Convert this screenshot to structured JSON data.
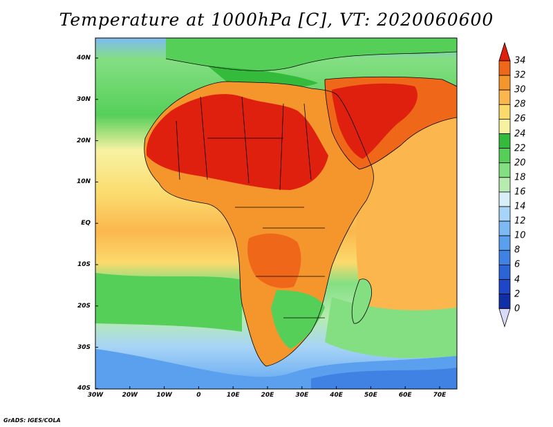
{
  "title": "Temperature at 1000hPa [C], VT: 2020060600",
  "credit": "GrADS: IGES/COLA",
  "map": {
    "lon_labels": [
      "30W",
      "20W",
      "10W",
      "0",
      "10E",
      "20E",
      "30E",
      "40E",
      "50E",
      "60E",
      "70E"
    ],
    "lat_labels": [
      "40N",
      "30N",
      "20N",
      "10N",
      "EQ",
      "10S",
      "20S",
      "30S",
      "40S"
    ],
    "lon_range": [
      -30,
      75
    ],
    "lat_range": [
      -40,
      44
    ],
    "land_outline": "coastline-and-country-borders"
  },
  "colorbar": {
    "ticks": [
      "34",
      "32",
      "30",
      "28",
      "26",
      "24",
      "22",
      "20",
      "18",
      "16",
      "14",
      "12",
      "10",
      "8",
      "6",
      "4",
      "2",
      "0"
    ],
    "colors": [
      "#000080",
      "#0f2fa6",
      "#1e46c8",
      "#2c64d8",
      "#3f82e4",
      "#5ba0ee",
      "#7db9f3",
      "#a7d4f7",
      "#d9eff7",
      "#b7ecb0",
      "#84df83",
      "#56cf59",
      "#35bb3c",
      "#f7f2a2",
      "#fbda6c",
      "#fbb74e",
      "#f5962d",
      "#ef6819",
      "#e0200f"
    ],
    "units": "C"
  }
}
